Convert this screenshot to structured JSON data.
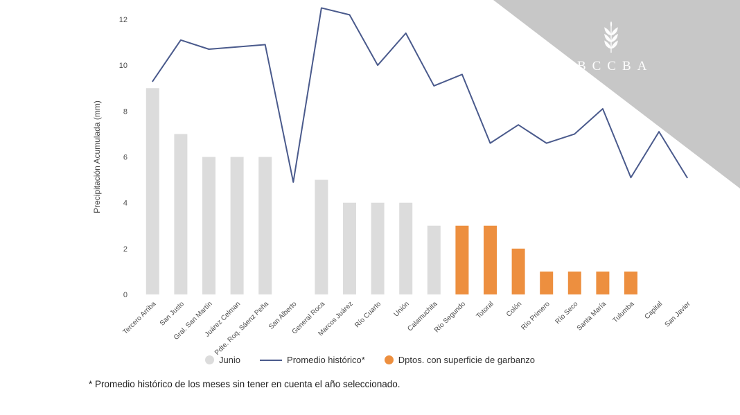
{
  "chart_data": {
    "type": "bar",
    "title": "",
    "ylabel": "Precipitación Acumulada (mm)",
    "ylim": [
      0,
      12
    ],
    "yticks": [
      0,
      2,
      4,
      6,
      8,
      10,
      12
    ],
    "categories": [
      "Tercero Arriba",
      "San Justo",
      "Gral. San Martín",
      "Juárez Celman",
      "Pdte. Roq. Sáenz Peña",
      "San Alberto",
      "General Roca",
      "Marcos Juárez",
      "Río Cuarto",
      "Unión",
      "Calamuchita",
      "Río Segundo",
      "Totoral",
      "Colón",
      "Río Primero",
      "Río Seco",
      "Santa María",
      "Tulumba",
      "Capital",
      "San Javier"
    ],
    "series": [
      {
        "name": "Junio",
        "type": "bar",
        "values": [
          9,
          7,
          6,
          6,
          6,
          0,
          5,
          4,
          4,
          4,
          3,
          3,
          3,
          2,
          1,
          1,
          1,
          1,
          0,
          0
        ],
        "garbanzo": [
          false,
          false,
          false,
          false,
          false,
          false,
          false,
          false,
          false,
          false,
          false,
          true,
          true,
          true,
          true,
          true,
          true,
          true,
          false,
          false
        ]
      },
      {
        "name": "Promedio histórico*",
        "type": "line",
        "values": [
          9.3,
          11.1,
          10.7,
          10.8,
          10.9,
          4.9,
          12.5,
          12.2,
          10.0,
          11.4,
          9.1,
          9.6,
          6.6,
          7.4,
          6.6,
          7.0,
          8.1,
          5.1,
          7.1,
          5.1
        ]
      }
    ],
    "legend_position": "bottom",
    "grid": false,
    "colors": {
      "bar_default": "#dcdcdc",
      "bar_garbanzo": "#ed8f3f",
      "line": "#4a5a8c"
    }
  },
  "legend": {
    "junio": "Junio",
    "promedio": "Promedio histórico*",
    "garbanzo": "Dptos. con superficie de garbanzo"
  },
  "footnote": "* Promedio histórico de los meses sin tener en cuenta el año seleccionado.",
  "logo": {
    "text": "BCCBA"
  }
}
